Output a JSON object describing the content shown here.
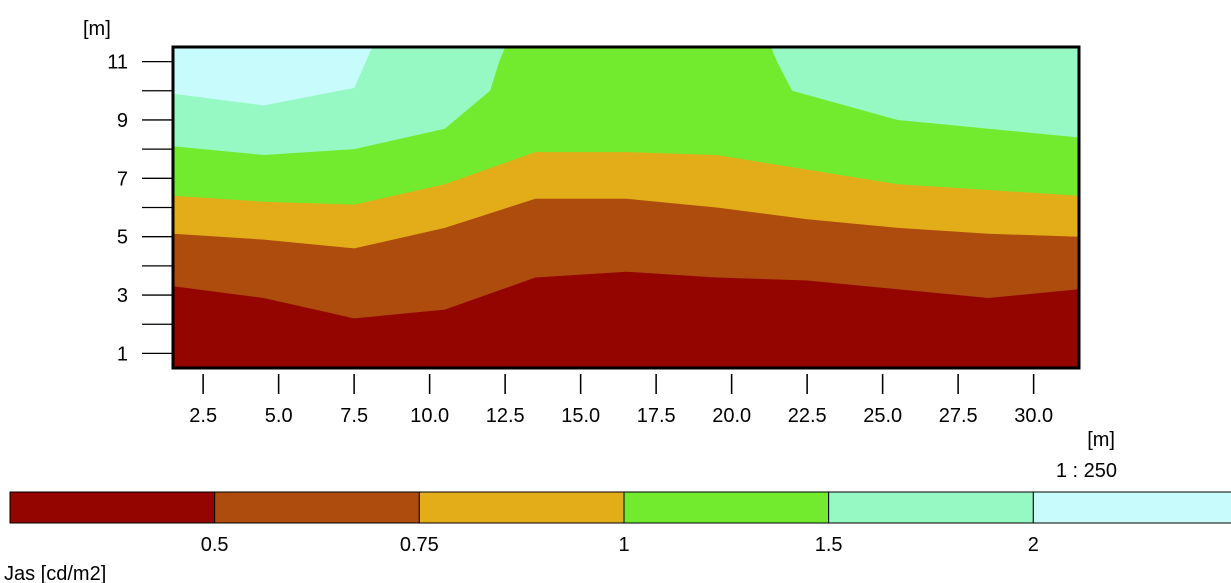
{
  "chart_data": {
    "type": "contour",
    "x_unit": "[m]",
    "y_unit": "[m]",
    "scale_label": "1 : 250",
    "legend_label": "Jas [cd/m2]",
    "xlim": [
      1.5,
      31.5
    ],
    "ylim": [
      0.5,
      11.5
    ],
    "x_ticks": [
      2.5,
      5.0,
      7.5,
      10.0,
      12.5,
      15.0,
      17.5,
      20.0,
      22.5,
      25.0,
      27.5,
      30.0
    ],
    "x_tick_labels": [
      "2.5",
      "5.0",
      "7.5",
      "10.0",
      "12.5",
      "15.0",
      "17.5",
      "20.0",
      "22.5",
      "25.0",
      "27.5",
      "30.0"
    ],
    "x_minor_ticks": [
      1.5,
      4.0,
      6.5,
      9.0,
      11.5,
      14.0,
      16.5,
      19.0,
      21.5,
      24.0,
      26.5,
      29.0
    ],
    "y_ticks": [
      1,
      3,
      5,
      7,
      9,
      11
    ],
    "y_tick_labels": [
      "1",
      "3",
      "5",
      "7",
      "9",
      "11"
    ],
    "y_minor_ticks": [
      2,
      4,
      6,
      8,
      10
    ],
    "levels": [
      "0.5",
      "0.75",
      "1",
      "1.5",
      "2"
    ],
    "level_values": [
      0.5,
      0.75,
      1,
      1.5,
      2
    ],
    "colors": [
      "#940500",
      "#ad4c0c",
      "#e3ad1a",
      "#72eb2f",
      "#96f9c4",
      "#c8fcfc"
    ],
    "contours": [
      {
        "level": 0.5,
        "x": [
          1.5,
          4.5,
          7.5,
          10.5,
          13.5,
          16.5,
          19.5,
          22.5,
          25.5,
          28.5,
          31.5
        ],
        "y": [
          3.3,
          2.9,
          2.2,
          2.5,
          3.6,
          3.8,
          3.6,
          3.5,
          3.2,
          2.9,
          3.2
        ]
      },
      {
        "level": 0.75,
        "x": [
          1.5,
          4.5,
          7.5,
          10.5,
          13.5,
          16.5,
          19.5,
          22.5,
          25.5,
          28.5,
          31.5
        ],
        "y": [
          5.1,
          4.9,
          4.6,
          5.3,
          6.3,
          6.3,
          6.0,
          5.6,
          5.3,
          5.1,
          5.0
        ]
      },
      {
        "level": 1,
        "x": [
          1.5,
          4.5,
          7.5,
          10.5,
          13.5,
          16.5,
          19.5,
          22.5,
          25.5,
          28.5,
          31.5
        ],
        "y": [
          6.4,
          6.2,
          6.1,
          6.8,
          7.9,
          7.9,
          7.8,
          7.3,
          6.8,
          6.6,
          6.4
        ]
      },
      {
        "level": 1.5,
        "x": [
          1.5,
          4.5,
          7.5,
          10.5,
          12.0,
          12.3,
          12.5,
          21.3,
          21.5,
          22.0,
          25.5,
          28.5,
          31.5
        ],
        "y": [
          8.1,
          7.8,
          8.0,
          8.7,
          10.0,
          11.0,
          11.5,
          11.5,
          11.0,
          10.0,
          9.0,
          8.7,
          8.4
        ]
      },
      {
        "level": 2,
        "x": [
          1.5,
          4.5,
          7.5,
          8.1
        ],
        "y": [
          9.9,
          9.5,
          10.1,
          11.5
        ]
      }
    ]
  }
}
